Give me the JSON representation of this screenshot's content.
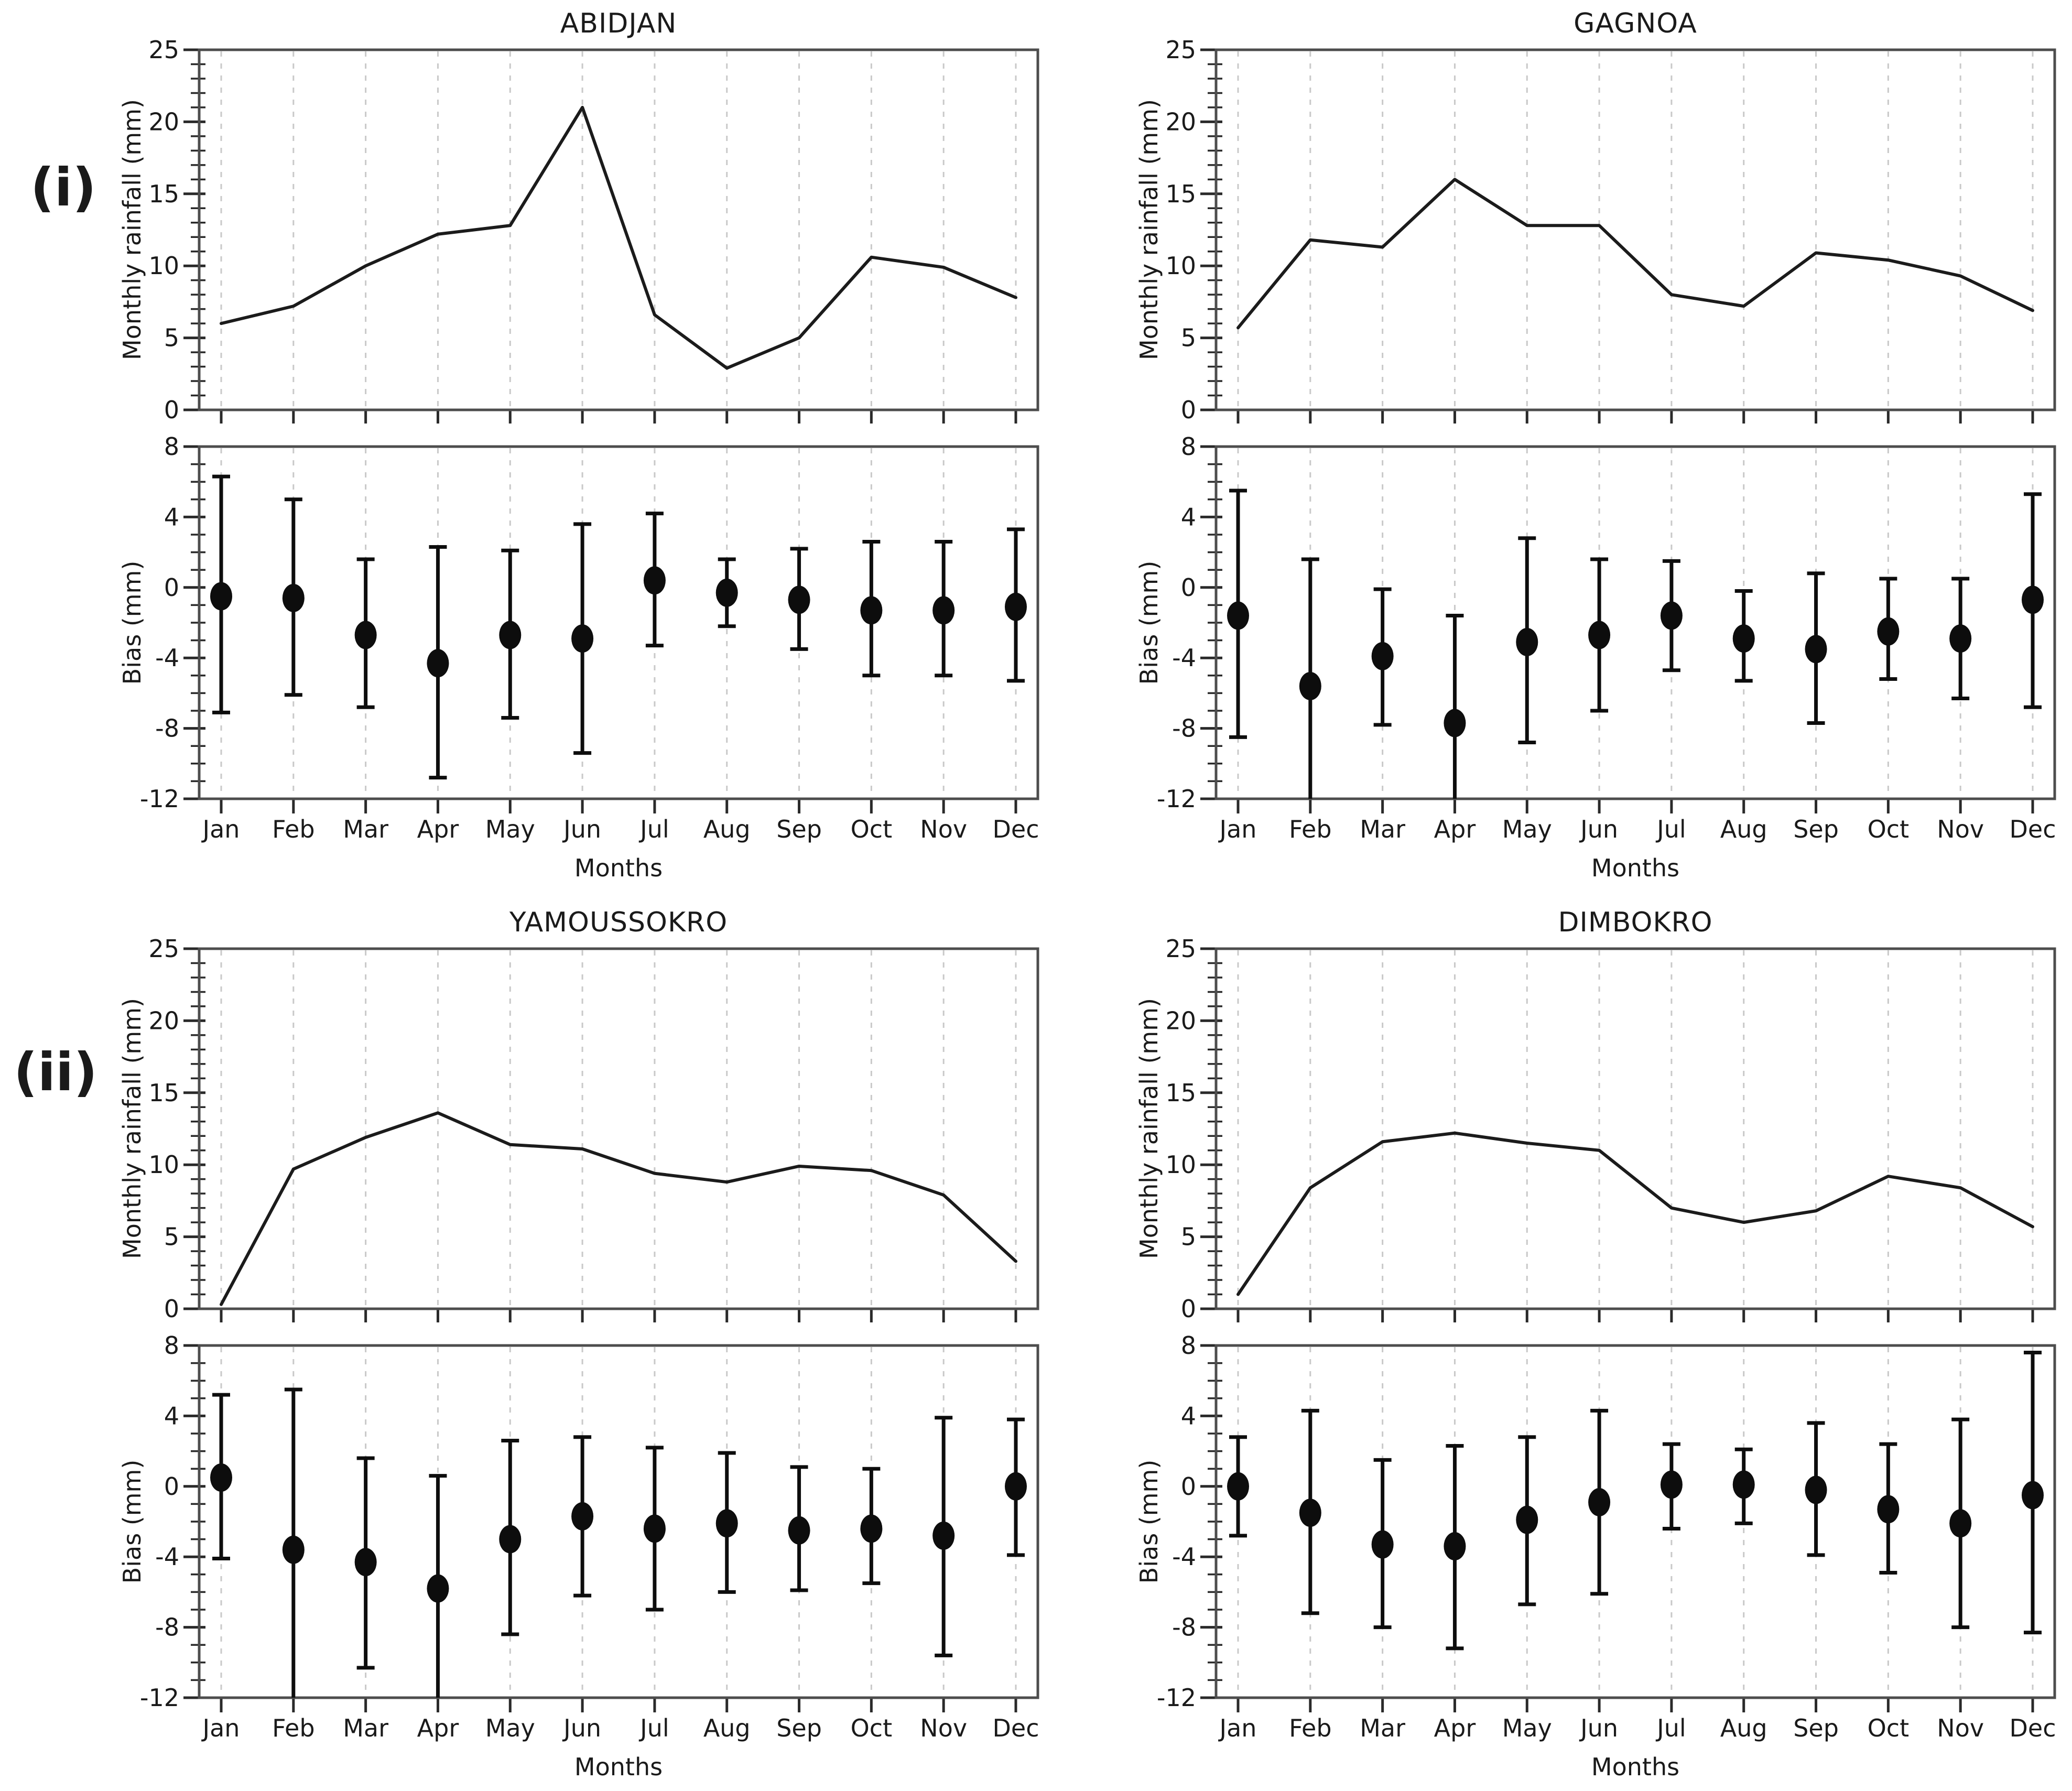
{
  "figure": {
    "section_labels": {
      "i": "(i)",
      "ii": "(ii)"
    },
    "xlabel": "Months",
    "months": [
      "Jan",
      "Feb",
      "Mar",
      "Apr",
      "May",
      "Jun",
      "Jul",
      "Aug",
      "Sep",
      "Oct",
      "Nov",
      "Dec"
    ],
    "style": {
      "line_color": "#1b1b1b",
      "marker_color": "#0d0d0d",
      "grid_color": "#c9c9c9",
      "spine_color": "#4d4d4d",
      "tick_color": "#2a2a2a",
      "text_color": "#1a1a1a",
      "background": "#ffffff"
    }
  },
  "chart_data": [
    {
      "panel": "top-left",
      "section": "(i)",
      "title": "ABIDJAN",
      "xlabel": "Months",
      "categories": [
        "Jan",
        "Feb",
        "Mar",
        "Apr",
        "May",
        "Jun",
        "Jul",
        "Aug",
        "Sep",
        "Oct",
        "Nov",
        "Dec"
      ],
      "rainfall": {
        "type": "line",
        "ylabel": "Monthly rainfall (mm)",
        "ylim": [
          0,
          25
        ],
        "yticks": [
          0,
          5,
          10,
          15,
          20,
          25
        ],
        "grid": "vertical-dashed",
        "values": [
          6.0,
          7.2,
          10.0,
          12.2,
          12.8,
          21.0,
          6.6,
          2.9,
          5.0,
          10.6,
          9.9,
          7.8
        ]
      },
      "bias": {
        "type": "errorbar",
        "ylabel": "Bias (mm)",
        "ylim": [
          -12,
          8
        ],
        "yticks": [
          -12,
          -8,
          -4,
          0,
          4,
          8
        ],
        "grid": "vertical-dashed",
        "center": [
          -0.5,
          -0.6,
          -2.7,
          -4.3,
          -2.7,
          -2.9,
          0.4,
          -0.3,
          -0.7,
          -1.3,
          -1.3,
          -1.1
        ],
        "upper": [
          6.3,
          5.0,
          1.6,
          2.3,
          2.1,
          3.6,
          4.2,
          1.6,
          2.2,
          2.6,
          2.6,
          3.3
        ],
        "lower": [
          -7.1,
          -6.1,
          -6.8,
          -10.8,
          -7.4,
          -9.4,
          -3.3,
          -2.2,
          -3.5,
          -5.0,
          -5.0,
          -5.3
        ]
      }
    },
    {
      "panel": "top-right",
      "section": "(i)",
      "title": "GAGNOA",
      "xlabel": "Months",
      "categories": [
        "Jan",
        "Feb",
        "Mar",
        "Apr",
        "May",
        "Jun",
        "Jul",
        "Aug",
        "Sep",
        "Oct",
        "Nov",
        "Dec"
      ],
      "rainfall": {
        "type": "line",
        "ylabel": "Monthly rainfall (mm)",
        "ylim": [
          0,
          25
        ],
        "yticks": [
          0,
          5,
          10,
          15,
          20,
          25
        ],
        "grid": "vertical-dashed",
        "values": [
          5.7,
          11.8,
          11.3,
          16.0,
          12.8,
          12.8,
          8.0,
          7.2,
          10.9,
          10.4,
          9.3,
          6.9
        ]
      },
      "bias": {
        "type": "errorbar",
        "ylabel": "Bias (mm)",
        "ylim": [
          -12,
          8
        ],
        "yticks": [
          -12,
          -8,
          -4,
          0,
          4,
          8
        ],
        "grid": "vertical-dashed",
        "center": [
          -1.6,
          -5.6,
          -3.9,
          -7.7,
          -3.1,
          -2.7,
          -1.6,
          -2.9,
          -3.5,
          -2.5,
          -2.9,
          -0.7
        ],
        "upper": [
          5.5,
          1.6,
          -0.1,
          -1.6,
          2.8,
          1.6,
          1.5,
          -0.2,
          0.8,
          0.5,
          0.5,
          5.3
        ],
        "lower": [
          -8.5,
          -12.7,
          -7.8,
          -12.8,
          -8.8,
          -7.0,
          -4.7,
          -5.3,
          -7.7,
          -5.2,
          -6.3,
          -6.8
        ]
      }
    },
    {
      "panel": "bottom-left",
      "section": "(ii)",
      "title": "YAMOUSSOKRO",
      "xlabel": "Months",
      "categories": [
        "Jan",
        "Feb",
        "Mar",
        "Apr",
        "May",
        "Jun",
        "Jul",
        "Aug",
        "Sep",
        "Oct",
        "Nov",
        "Dec"
      ],
      "rainfall": {
        "type": "line",
        "ylabel": "Monthly rainfall (mm)",
        "ylim": [
          0,
          25
        ],
        "yticks": [
          0,
          5,
          10,
          15,
          20,
          25
        ],
        "grid": "vertical-dashed",
        "values": [
          0.3,
          9.7,
          11.9,
          13.6,
          11.4,
          11.1,
          9.4,
          8.8,
          9.9,
          9.6,
          7.9,
          3.3
        ]
      },
      "bias": {
        "type": "errorbar",
        "ylabel": "Bias (mm)",
        "ylim": [
          -12,
          8
        ],
        "yticks": [
          -12,
          -8,
          -4,
          0,
          4,
          8
        ],
        "grid": "vertical-dashed",
        "center": [
          0.5,
          -3.6,
          -4.3,
          -5.8,
          -3.0,
          -1.7,
          -2.4,
          -2.1,
          -2.5,
          -2.4,
          -2.8,
          0.0
        ],
        "upper": [
          5.2,
          5.5,
          1.6,
          0.6,
          2.6,
          2.8,
          2.2,
          1.9,
          1.1,
          1.0,
          3.9,
          3.8
        ],
        "lower": [
          -4.1,
          -12.7,
          -10.3,
          -12.8,
          -8.4,
          -6.2,
          -7.0,
          -6.0,
          -5.9,
          -5.5,
          -9.6,
          -3.9
        ]
      }
    },
    {
      "panel": "bottom-right",
      "section": "(ii)",
      "title": "DIMBOKRO",
      "xlabel": "Months",
      "categories": [
        "Jan",
        "Feb",
        "Mar",
        "Apr",
        "May",
        "Jun",
        "Jul",
        "Aug",
        "Sep",
        "Oct",
        "Nov",
        "Dec"
      ],
      "rainfall": {
        "type": "line",
        "ylabel": "Monthly rainfall (mm)",
        "ylim": [
          0,
          25
        ],
        "yticks": [
          0,
          5,
          10,
          15,
          20,
          25
        ],
        "grid": "vertical-dashed",
        "values": [
          1.0,
          8.4,
          11.6,
          12.2,
          11.5,
          11.0,
          7.0,
          6.0,
          6.8,
          9.2,
          8.4,
          5.7
        ]
      },
      "bias": {
        "type": "errorbar",
        "ylabel": "Bias (mm)",
        "ylim": [
          -12,
          8
        ],
        "yticks": [
          -12,
          -8,
          -4,
          0,
          4,
          8
        ],
        "grid": "vertical-dashed",
        "center": [
          0.0,
          -1.5,
          -3.3,
          -3.4,
          -1.9,
          -0.9,
          0.1,
          0.1,
          -0.2,
          -1.3,
          -2.1,
          -0.5
        ],
        "upper": [
          2.8,
          4.3,
          1.5,
          2.3,
          2.8,
          4.3,
          2.4,
          2.1,
          3.6,
          2.4,
          3.8,
          7.6
        ],
        "lower": [
          -2.8,
          -7.2,
          -8.0,
          -9.2,
          -6.7,
          -6.1,
          -2.4,
          -2.1,
          -3.9,
          -4.9,
          -8.0,
          -8.3
        ]
      }
    }
  ]
}
